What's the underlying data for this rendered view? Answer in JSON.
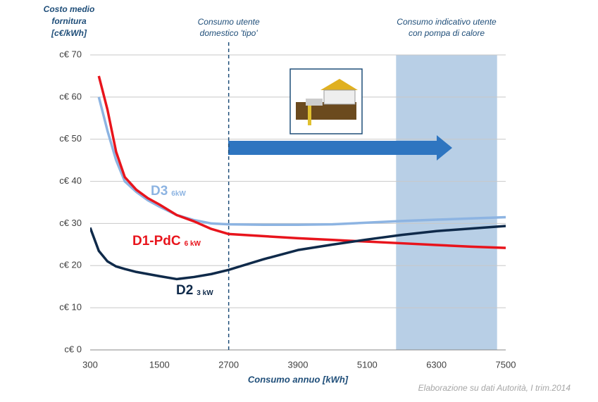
{
  "chart_data": {
    "type": "line",
    "y_label": [
      "Costo medio",
      "fornitura",
      "[c€/kWh]"
    ],
    "x_label": "Consumo annuo [kWh]",
    "source": "Elaborazione su dati Autorità, I trim.2014",
    "x": [
      300,
      450,
      600,
      750,
      900,
      1100,
      1300,
      1500,
      1800,
      2100,
      2400,
      2700,
      3300,
      3900,
      4500,
      5100,
      5700,
      6300,
      6900,
      7500
    ],
    "series": [
      {
        "name": "D3",
        "capacity": "6kW",
        "color": "#8db4e2",
        "values": [
          null,
          60,
          52,
          45,
          40,
          37.5,
          35.5,
          34,
          32,
          30.8,
          30,
          29.8,
          29.7,
          29.7,
          29.8,
          30.2,
          30.6,
          30.9,
          31.2,
          31.5
        ]
      },
      {
        "name": "D1-PdC",
        "capacity": "6 kW",
        "color": "#e8141c",
        "values": [
          null,
          65,
          57,
          47,
          41,
          38,
          36,
          34.5,
          32,
          30.5,
          28.7,
          27.5,
          27,
          26.5,
          26.1,
          25.7,
          25.3,
          24.9,
          24.5,
          24.2
        ]
      },
      {
        "name": "D2",
        "capacity": "3 kW",
        "color": "#0f2a4a",
        "values": [
          29,
          23.5,
          21,
          19.8,
          19.2,
          18.5,
          18,
          17.5,
          16.8,
          17.3,
          18,
          19,
          21.5,
          23.7,
          25,
          26.2,
          27.3,
          28.2,
          28.8,
          29.4
        ]
      }
    ],
    "xlim": [
      300,
      7500
    ],
    "xticks": [
      300,
      1500,
      2700,
      3900,
      5100,
      6300,
      7500
    ],
    "ylim": [
      0,
      70
    ],
    "yticks": [
      {
        "value": 0,
        "label": "c€ 0"
      },
      {
        "value": 10,
        "label": "c€ 10"
      },
      {
        "value": 20,
        "label": "c€ 20"
      },
      {
        "value": 30,
        "label": "c€ 30"
      },
      {
        "value": 40,
        "label": "c€ 40"
      },
      {
        "value": 50,
        "label": "c€ 50"
      },
      {
        "value": 60,
        "label": "c€ 60"
      },
      {
        "value": 70,
        "label": "c€ 70"
      }
    ],
    "grid": true,
    "vline": {
      "x": 2700,
      "label": [
        "Consumo utente",
        "domestico  'tipo'"
      ]
    },
    "band": {
      "x": [
        5600,
        7350
      ],
      "color": "#b8cfe6",
      "label": [
        "Consumo indicativo  utente",
        "con pompa  di calore"
      ]
    }
  }
}
